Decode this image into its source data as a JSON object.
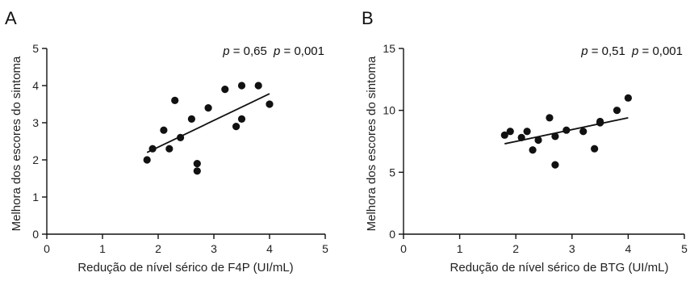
{
  "chart_data": [
    {
      "panel": "A",
      "type": "scatter",
      "xlabel": "Redução de nível sérico de F4P (UI/mL)",
      "ylabel": "Melhora dos escores do sintoma",
      "xlim": [
        0,
        5
      ],
      "ylim": [
        0,
        5
      ],
      "x_ticks": [
        0,
        1,
        2,
        3,
        4,
        5
      ],
      "y_ticks": [
        0,
        1,
        2,
        3,
        4,
        5
      ],
      "stats": {
        "p1_symbol": "p",
        "p1_value": "= 0,65",
        "p2_symbol": "p",
        "p2_value": "= 0,001"
      },
      "points": [
        [
          1.8,
          2.0
        ],
        [
          1.9,
          2.3
        ],
        [
          2.1,
          2.8
        ],
        [
          2.2,
          2.3
        ],
        [
          2.3,
          3.6
        ],
        [
          2.4,
          2.6
        ],
        [
          2.6,
          3.1
        ],
        [
          2.7,
          1.9
        ],
        [
          2.7,
          1.7
        ],
        [
          2.9,
          3.4
        ],
        [
          3.2,
          3.9
        ],
        [
          3.4,
          2.9
        ],
        [
          3.5,
          4.0
        ],
        [
          3.5,
          3.1
        ],
        [
          3.8,
          4.0
        ],
        [
          4.0,
          3.5
        ]
      ],
      "trendline": [
        [
          1.8,
          2.2
        ],
        [
          4.0,
          3.78
        ]
      ],
      "grid": false
    },
    {
      "panel": "B",
      "type": "scatter",
      "xlabel": "Redução de nível sérico de BTG (UI/mL)",
      "ylabel": "Melhora dos escores do sintoma",
      "xlim": [
        0,
        5
      ],
      "ylim": [
        0,
        15
      ],
      "x_ticks": [
        0,
        1,
        2,
        3,
        4,
        5
      ],
      "y_ticks": [
        0,
        5,
        10,
        15
      ],
      "stats": {
        "p1_symbol": "p",
        "p1_value": "= 0,51",
        "p2_symbol": "p",
        "p2_value": "= 0,001"
      },
      "points": [
        [
          1.8,
          8.0
        ],
        [
          1.9,
          8.3
        ],
        [
          2.1,
          7.8
        ],
        [
          2.2,
          8.3
        ],
        [
          2.3,
          6.8
        ],
        [
          2.4,
          7.6
        ],
        [
          2.6,
          9.4
        ],
        [
          2.7,
          7.9
        ],
        [
          2.7,
          5.6
        ],
        [
          2.9,
          8.4
        ],
        [
          3.2,
          8.3
        ],
        [
          3.4,
          6.9
        ],
        [
          3.5,
          9.0
        ],
        [
          3.5,
          9.1
        ],
        [
          3.8,
          10.0
        ],
        [
          4.0,
          11.0
        ]
      ],
      "trendline": [
        [
          1.8,
          7.3
        ],
        [
          4.0,
          9.4
        ]
      ],
      "grid": false
    }
  ]
}
